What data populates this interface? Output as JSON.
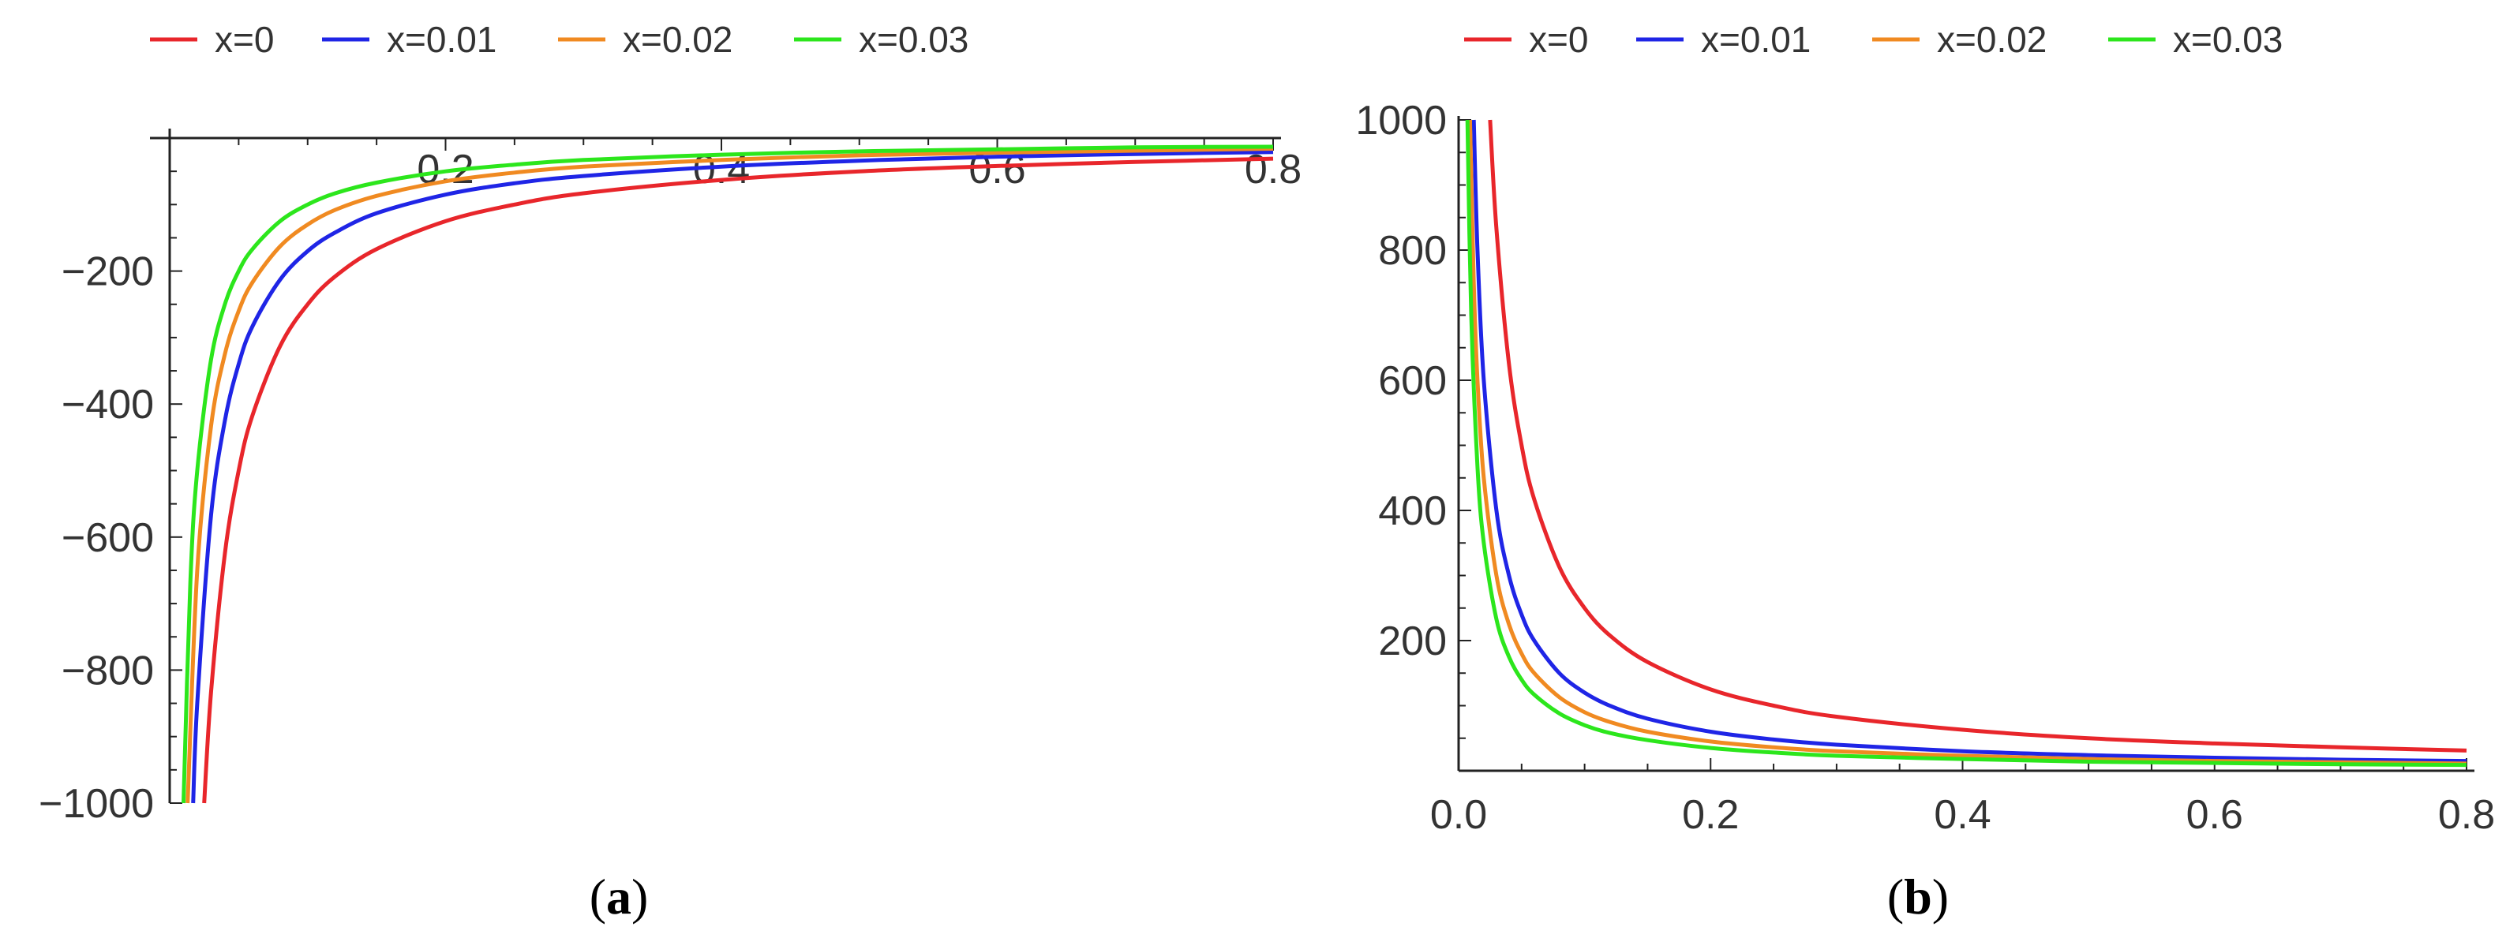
{
  "chart_data": [
    {
      "panel": "(a)",
      "panel_letter": "a",
      "type": "line",
      "title": "",
      "xlabel": "",
      "ylabel": "",
      "xlim": [
        0,
        0.8
      ],
      "ylim": [
        -1000,
        0
      ],
      "grid": false,
      "legend_position": "top",
      "x_ticks": [
        0.2,
        0.4,
        0.6,
        0.8
      ],
      "x_tick_labels": [
        "0.2",
        "0.4",
        "0.6",
        "0.8"
      ],
      "y_ticks": [
        -200,
        -400,
        -600,
        -800,
        -1000
      ],
      "y_tick_labels": [
        "−200",
        "−400",
        "−600",
        "−800",
        "−1000"
      ],
      "series": [
        {
          "name": "x=0",
          "color": "#e8262b",
          "x": [
            0.025,
            0.03,
            0.04,
            0.05,
            0.06,
            0.08,
            0.1,
            0.12,
            0.15,
            0.2,
            0.25,
            0.3,
            0.4,
            0.5,
            0.6,
            0.7,
            0.8
          ],
          "y": [
            -1000,
            -833,
            -625,
            -500,
            -417,
            -313,
            -250,
            -208,
            -167,
            -125,
            -100,
            -83,
            -63,
            -50,
            -42,
            -36,
            -31
          ]
        },
        {
          "name": "x=0.01",
          "color": "#1f25e6",
          "x": [
            0.017,
            0.02,
            0.03,
            0.04,
            0.05,
            0.06,
            0.08,
            0.1,
            0.12,
            0.15,
            0.2,
            0.25,
            0.3,
            0.4,
            0.5,
            0.6,
            0.7,
            0.8
          ],
          "y": [
            -1000,
            -850,
            -567,
            -425,
            -340,
            -283,
            -213,
            -170,
            -142,
            -113,
            -85,
            -68,
            -57,
            -43,
            -34,
            -28,
            -24,
            -21
          ]
        },
        {
          "name": "x=0.02",
          "color": "#f08a21",
          "x": [
            0.013,
            0.02,
            0.03,
            0.04,
            0.05,
            0.06,
            0.08,
            0.1,
            0.12,
            0.15,
            0.2,
            0.25,
            0.3,
            0.4,
            0.5,
            0.6,
            0.7,
            0.8
          ],
          "y": [
            -1000,
            -650,
            -433,
            -325,
            -260,
            -217,
            -163,
            -130,
            -108,
            -87,
            -65,
            -52,
            -43,
            -33,
            -26,
            -22,
            -19,
            -16
          ]
        },
        {
          "name": "x=0.03",
          "color": "#2ce61c",
          "x": [
            0.01,
            0.015,
            0.02,
            0.03,
            0.04,
            0.05,
            0.06,
            0.08,
            0.1,
            0.12,
            0.15,
            0.2,
            0.25,
            0.3,
            0.4,
            0.5,
            0.6,
            0.7,
            0.8
          ],
          "y": [
            -1000,
            -667,
            -500,
            -333,
            -250,
            -200,
            -167,
            -125,
            -100,
            -83,
            -67,
            -50,
            -40,
            -33,
            -25,
            -20,
            -17,
            -14,
            -13
          ]
        }
      ]
    },
    {
      "panel": "(b)",
      "panel_letter": "b",
      "type": "line",
      "title": "",
      "xlabel": "",
      "ylabel": "",
      "xlim": [
        0,
        0.8
      ],
      "ylim": [
        0,
        1000
      ],
      "grid": false,
      "legend_position": "top",
      "x_ticks": [
        0,
        0.2,
        0.4,
        0.6,
        0.8
      ],
      "x_tick_labels": [
        "0.0",
        "0.2",
        "0.4",
        "0.6",
        "0.8"
      ],
      "y_ticks": [
        200,
        400,
        600,
        800,
        1000
      ],
      "y_tick_labels": [
        "200",
        "400",
        "600",
        "800",
        "1000"
      ],
      "series": [
        {
          "name": "x=0",
          "color": "#e8262b",
          "x": [
            0.025,
            0.03,
            0.04,
            0.05,
            0.06,
            0.08,
            0.1,
            0.12,
            0.15,
            0.2,
            0.25,
            0.3,
            0.4,
            0.5,
            0.6,
            0.7,
            0.8
          ],
          "y": [
            1000,
            833,
            625,
            500,
            417,
            313,
            250,
            208,
            167,
            125,
            100,
            83,
            63,
            50,
            42,
            36,
            31
          ]
        },
        {
          "name": "x=0.01",
          "color": "#1f25e6",
          "x": [
            0.012,
            0.015,
            0.02,
            0.03,
            0.04,
            0.05,
            0.06,
            0.08,
            0.1,
            0.12,
            0.15,
            0.2,
            0.25,
            0.3,
            0.4,
            0.5,
            0.6,
            0.7,
            0.8
          ],
          "y": [
            1000,
            800,
            600,
            400,
            300,
            240,
            200,
            150,
            120,
            100,
            80,
            60,
            48,
            40,
            30,
            24,
            20,
            17,
            15
          ]
        },
        {
          "name": "x=0.02",
          "color": "#f08a21",
          "x": [
            0.009,
            0.012,
            0.015,
            0.02,
            0.03,
            0.04,
            0.05,
            0.06,
            0.08,
            0.1,
            0.12,
            0.15,
            0.2,
            0.25,
            0.3,
            0.4,
            0.5,
            0.6,
            0.7,
            0.8
          ],
          "y": [
            1000,
            750,
            600,
            450,
            300,
            225,
            180,
            150,
            113,
            90,
            75,
            60,
            45,
            36,
            30,
            23,
            18,
            15,
            13,
            11
          ]
        },
        {
          "name": "x=0.03",
          "color": "#2ce61c",
          "x": [
            0.007,
            0.01,
            0.015,
            0.02,
            0.03,
            0.04,
            0.05,
            0.06,
            0.08,
            0.1,
            0.12,
            0.15,
            0.2,
            0.25,
            0.3,
            0.4,
            0.5,
            0.6,
            0.7,
            0.8
          ],
          "y": [
            1000,
            700,
            467,
            350,
            233,
            175,
            140,
            117,
            88,
            70,
            58,
            47,
            35,
            28,
            23,
            18,
            14,
            12,
            10,
            9
          ]
        }
      ]
    }
  ]
}
